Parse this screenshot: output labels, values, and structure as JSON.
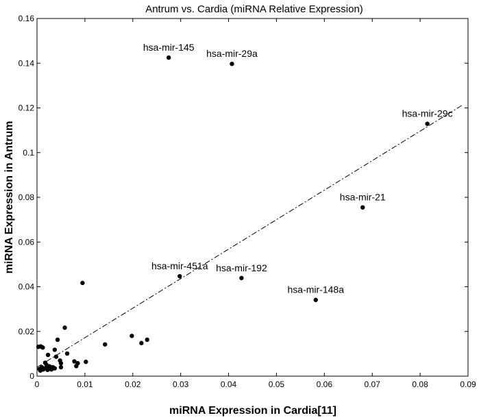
{
  "chart_data": {
    "type": "scatter",
    "title": "Antrum vs. Cardia (miRNA Relative Expression)",
    "xlabel": "miRNA Expression in Cardia[11]",
    "ylabel": "miRNA Expression in Antrum",
    "xlim": [
      0,
      0.09
    ],
    "ylim": [
      0,
      0.16
    ],
    "grid": false,
    "x_ticks": [
      {
        "value": 0,
        "label": "0"
      },
      {
        "value": 0.01,
        "label": "0.01"
      },
      {
        "value": 0.02,
        "label": "0.02"
      },
      {
        "value": 0.03,
        "label": "0.03"
      },
      {
        "value": 0.04,
        "label": "0.04"
      },
      {
        "value": 0.05,
        "label": "0.05"
      },
      {
        "value": 0.06,
        "label": "0.06"
      },
      {
        "value": 0.07,
        "label": "0.07"
      },
      {
        "value": 0.08,
        "label": "0.08"
      },
      {
        "value": 0.09,
        "label": "0.09"
      }
    ],
    "y_ticks": [
      {
        "value": 0,
        "label": "0"
      },
      {
        "value": 0.02,
        "label": "0.02"
      },
      {
        "value": 0.04,
        "label": "0.04"
      },
      {
        "value": 0.06,
        "label": "0.06"
      },
      {
        "value": 0.08,
        "label": "0.08"
      },
      {
        "value": 0.1,
        "label": "0.1"
      },
      {
        "value": 0.12,
        "label": "0.12"
      },
      {
        "value": 0.14,
        "label": "0.14"
      },
      {
        "value": 0.16,
        "label": "0.16"
      }
    ],
    "points": [
      {
        "x": 0.0275,
        "y": 0.1425,
        "label": "hsa-mir-145"
      },
      {
        "x": 0.0407,
        "y": 0.1397,
        "label": "hsa-mir-29a"
      },
      {
        "x": 0.0815,
        "y": 0.1129,
        "label": "hsa-mir-29c"
      },
      {
        "x": 0.068,
        "y": 0.0755,
        "label": "hsa-mir-21"
      },
      {
        "x": 0.0298,
        "y": 0.0447,
        "label": "hsa-mir-451a"
      },
      {
        "x": 0.0427,
        "y": 0.0439,
        "label": "hsa-mir-192"
      },
      {
        "x": 0.0582,
        "y": 0.0341,
        "label": "hsa-mir-148a"
      },
      {
        "x": 0.0095,
        "y": 0.0417
      },
      {
        "x": 0.0058,
        "y": 0.0217
      },
      {
        "x": 0.0198,
        "y": 0.018
      },
      {
        "x": 0.023,
        "y": 0.0163
      },
      {
        "x": 0.0218,
        "y": 0.0148
      },
      {
        "x": 0.0142,
        "y": 0.0142
      },
      {
        "x": 0.0043,
        "y": 0.0163
      },
      {
        "x": 0.0003,
        "y": 0.0131
      },
      {
        "x": 0.0008,
        "y": 0.0133
      },
      {
        "x": 0.0012,
        "y": 0.0128
      },
      {
        "x": 0.0037,
        "y": 0.0118
      },
      {
        "x": 0.0063,
        "y": 0.0101
      },
      {
        "x": 0.0023,
        "y": 0.0095
      },
      {
        "x": 0.004,
        "y": 0.0087
      },
      {
        "x": 0.0048,
        "y": 0.007
      },
      {
        "x": 0.005,
        "y": 0.0058
      },
      {
        "x": 0.0078,
        "y": 0.0066
      },
      {
        "x": 0.0085,
        "y": 0.0058
      },
      {
        "x": 0.0102,
        "y": 0.0064
      },
      {
        "x": 0.0017,
        "y": 0.006
      },
      {
        "x": 0.002,
        "y": 0.005
      },
      {
        "x": 0.0026,
        "y": 0.0044
      },
      {
        "x": 0.0033,
        "y": 0.004
      },
      {
        "x": 0.0037,
        "y": 0.0035
      },
      {
        "x": 0.001,
        "y": 0.004
      },
      {
        "x": 0.0005,
        "y": 0.0032
      },
      {
        "x": 0.0013,
        "y": 0.003
      },
      {
        "x": 0.0018,
        "y": 0.0036
      },
      {
        "x": 0.003,
        "y": 0.003
      },
      {
        "x": 0.005,
        "y": 0.004
      },
      {
        "x": 0.0082,
        "y": 0.0045
      },
      {
        "x": 0.0007,
        "y": 0.0025
      },
      {
        "x": 0.0022,
        "y": 0.0028
      }
    ],
    "trendline": {
      "style": "dash-dot",
      "x": [
        0,
        0.089
      ],
      "y": [
        0.004,
        0.1215
      ]
    }
  }
}
